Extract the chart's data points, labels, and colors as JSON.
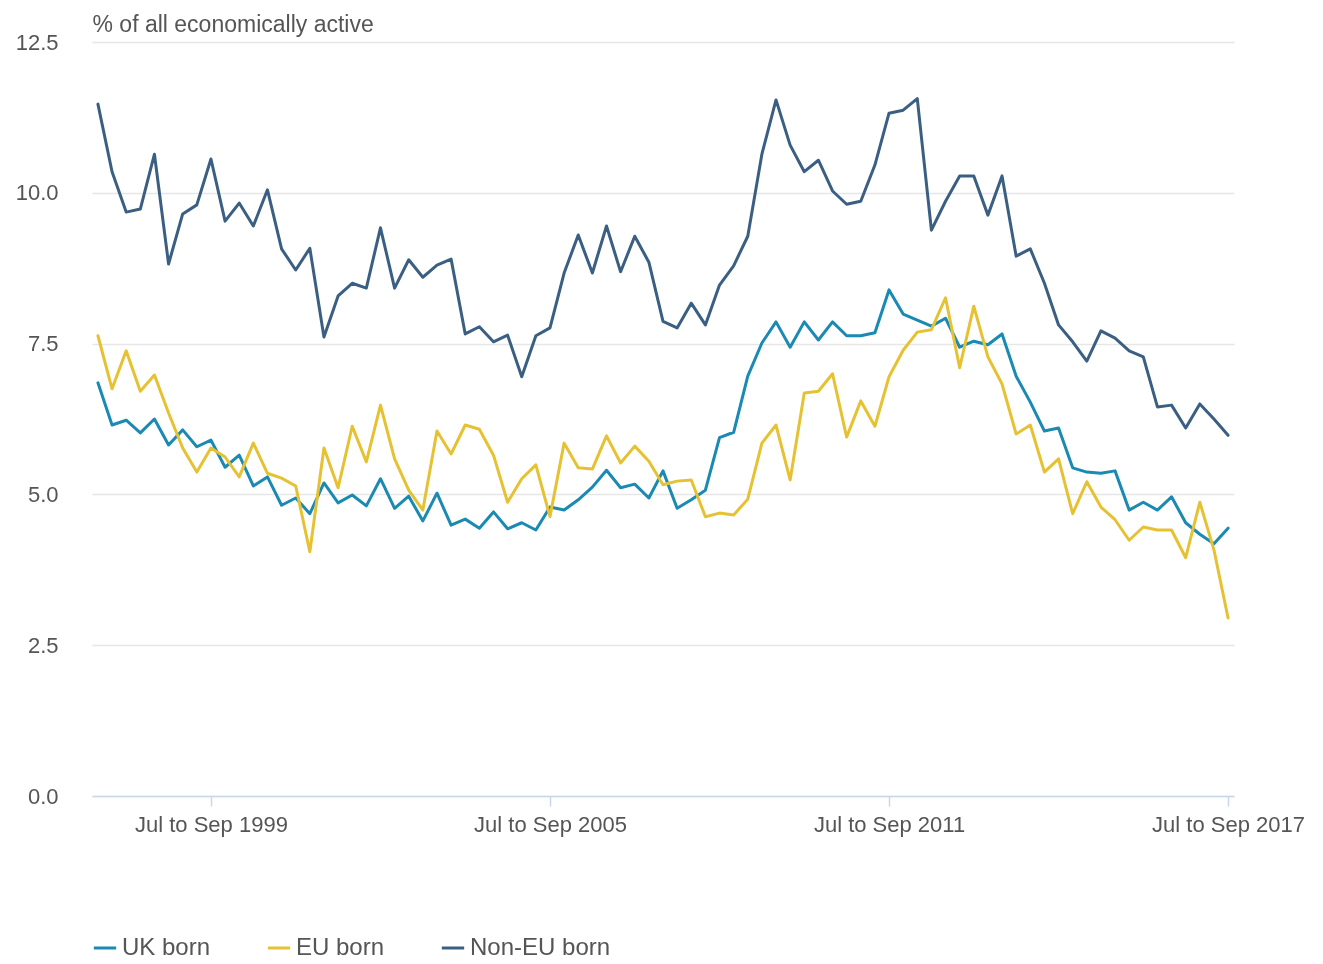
{
  "chart_data": {
    "type": "line",
    "ylabel": "% of all economically active",
    "categories": [
      null,
      null,
      null,
      null,
      null,
      null,
      null,
      null,
      "Jul to Sep 1999",
      null,
      null,
      null,
      null,
      null,
      null,
      null,
      null,
      null,
      null,
      null,
      null,
      null,
      null,
      null,
      null,
      null,
      null,
      null,
      null,
      null,
      null,
      null,
      "Jul to Sep 2005",
      null,
      null,
      null,
      null,
      null,
      null,
      null,
      null,
      null,
      null,
      null,
      null,
      null,
      null,
      null,
      null,
      null,
      null,
      null,
      null,
      null,
      null,
      null,
      "Jul to Sep 2011",
      null,
      null,
      null,
      null,
      null,
      null,
      null,
      null,
      null,
      null,
      null,
      null,
      null,
      null,
      null,
      null,
      null,
      null,
      null,
      null,
      null,
      null,
      null,
      "Jul to Sep 2017"
    ],
    "series": [
      {
        "name": "UK born",
        "color": "#1a8ab2",
        "values": [
          6.85,
          6.15,
          6.23,
          6.02,
          6.25,
          5.82,
          6.07,
          5.79,
          5.9,
          5.45,
          5.65,
          5.14,
          5.29,
          4.82,
          4.94,
          4.68,
          5.19,
          4.86,
          4.99,
          4.81,
          5.26,
          4.77,
          4.97,
          4.56,
          5.02,
          4.49,
          4.59,
          4.44,
          4.71,
          4.43,
          4.53,
          4.41,
          4.79,
          4.74,
          4.91,
          5.12,
          5.4,
          5.11,
          5.17,
          4.94,
          5.39,
          4.77,
          4.91,
          5.07,
          5.94,
          6.03,
          6.96,
          7.51,
          7.86,
          7.44,
          7.86,
          7.56,
          7.86,
          7.63,
          7.63,
          7.68,
          8.39,
          7.99,
          7.89,
          7.79,
          7.92,
          7.44,
          7.54,
          7.48,
          7.66,
          6.96,
          6.53,
          6.05,
          6.1,
          5.44,
          5.37,
          5.35,
          5.39,
          4.74,
          4.87,
          4.74,
          4.96,
          4.53,
          4.34,
          4.18,
          4.44
        ]
      },
      {
        "name": "EU born",
        "color": "#e6c232",
        "values": [
          7.63,
          6.75,
          7.38,
          6.71,
          6.98,
          6.35,
          5.77,
          5.37,
          5.77,
          5.62,
          5.29,
          5.85,
          5.35,
          5.27,
          5.14,
          4.05,
          5.77,
          5.11,
          6.13,
          5.54,
          6.48,
          5.59,
          5.07,
          4.74,
          6.05,
          5.67,
          6.15,
          6.08,
          5.65,
          4.87,
          5.26,
          5.49,
          4.63,
          5.85,
          5.44,
          5.42,
          5.97,
          5.52,
          5.8,
          5.55,
          5.16,
          5.22,
          5.24,
          4.63,
          4.69,
          4.66,
          4.92,
          5.85,
          6.15,
          5.24,
          6.68,
          6.71,
          7.0,
          5.95,
          6.55,
          6.13,
          6.95,
          7.39,
          7.69,
          7.73,
          8.26,
          7.1,
          8.12,
          7.28,
          6.83,
          6.0,
          6.15,
          5.37,
          5.59,
          4.68,
          5.21,
          4.79,
          4.58,
          4.24,
          4.46,
          4.41,
          4.41,
          3.95,
          4.87,
          4.08,
          2.95
        ]
      },
      {
        "name": "Non-EU born",
        "color": "#3a5f82",
        "values": [
          11.47,
          10.35,
          9.68,
          9.73,
          10.64,
          8.82,
          9.65,
          9.8,
          10.56,
          9.53,
          9.83,
          9.45,
          10.05,
          9.07,
          8.72,
          9.08,
          7.61,
          8.29,
          8.5,
          8.42,
          9.42,
          8.42,
          8.89,
          8.6,
          8.8,
          8.9,
          7.66,
          7.78,
          7.53,
          7.64,
          6.95,
          7.63,
          7.76,
          8.67,
          9.3,
          8.67,
          9.45,
          8.69,
          9.28,
          8.85,
          7.87,
          7.76,
          8.17,
          7.81,
          8.47,
          8.79,
          9.28,
          10.64,
          11.54,
          10.79,
          10.35,
          10.54,
          10.03,
          9.81,
          9.86,
          10.46,
          11.32,
          11.37,
          11.56,
          9.38,
          9.86,
          10.28,
          10.28,
          9.63,
          10.28,
          8.95,
          9.07,
          8.5,
          7.81,
          7.53,
          7.21,
          7.71,
          7.59,
          7.38,
          7.28,
          6.45,
          6.48,
          6.1,
          6.5,
          6.25,
          5.98
        ]
      }
    ],
    "ylim": [
      0,
      12.5
    ],
    "yticks": [
      {
        "value": 0,
        "label": "0.0"
      },
      {
        "value": 2.5,
        "label": "2.5"
      },
      {
        "value": 5,
        "label": "5.0"
      },
      {
        "value": 7.5,
        "label": "7.5"
      },
      {
        "value": 10,
        "label": "10.0"
      },
      {
        "value": 12.5,
        "label": "12.5"
      }
    ],
    "grid": "y",
    "legend": "bottom",
    "marker": "none",
    "line_style": "solid"
  }
}
